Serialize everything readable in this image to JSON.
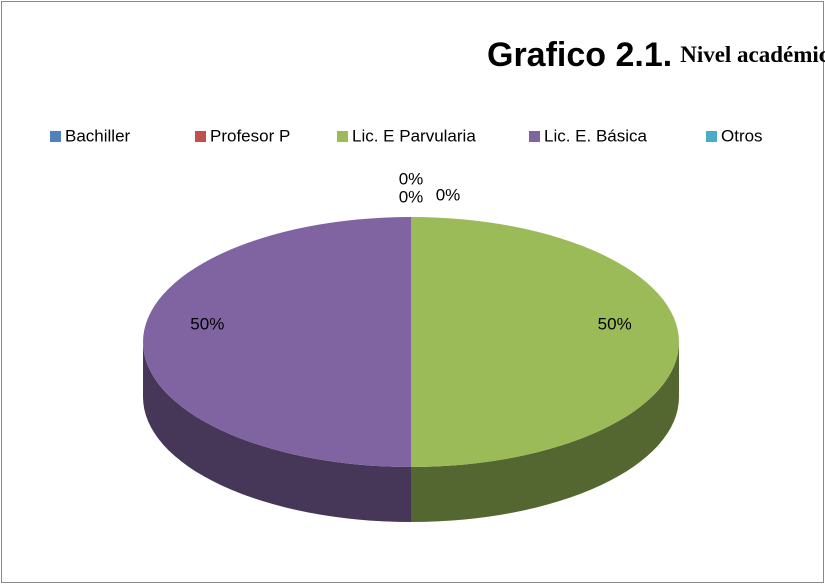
{
  "chart_data": {
    "type": "pie3d",
    "title": "Grafico 2.1.",
    "subtitle": "Nivel académico",
    "categories": [
      "Bachiller",
      "Profesor P",
      "Lic. E Parvularia",
      "Lic. E. Básica",
      "Otros"
    ],
    "values": [
      0,
      0,
      50,
      50,
      0
    ],
    "value_labels": [
      "0%",
      "0%",
      "50%",
      "50%",
      "0%"
    ],
    "colors": [
      "#4f81bd",
      "#c0504d",
      "#9bbb59",
      "#8064a2",
      "#4bacc6"
    ],
    "legend": "top"
  }
}
